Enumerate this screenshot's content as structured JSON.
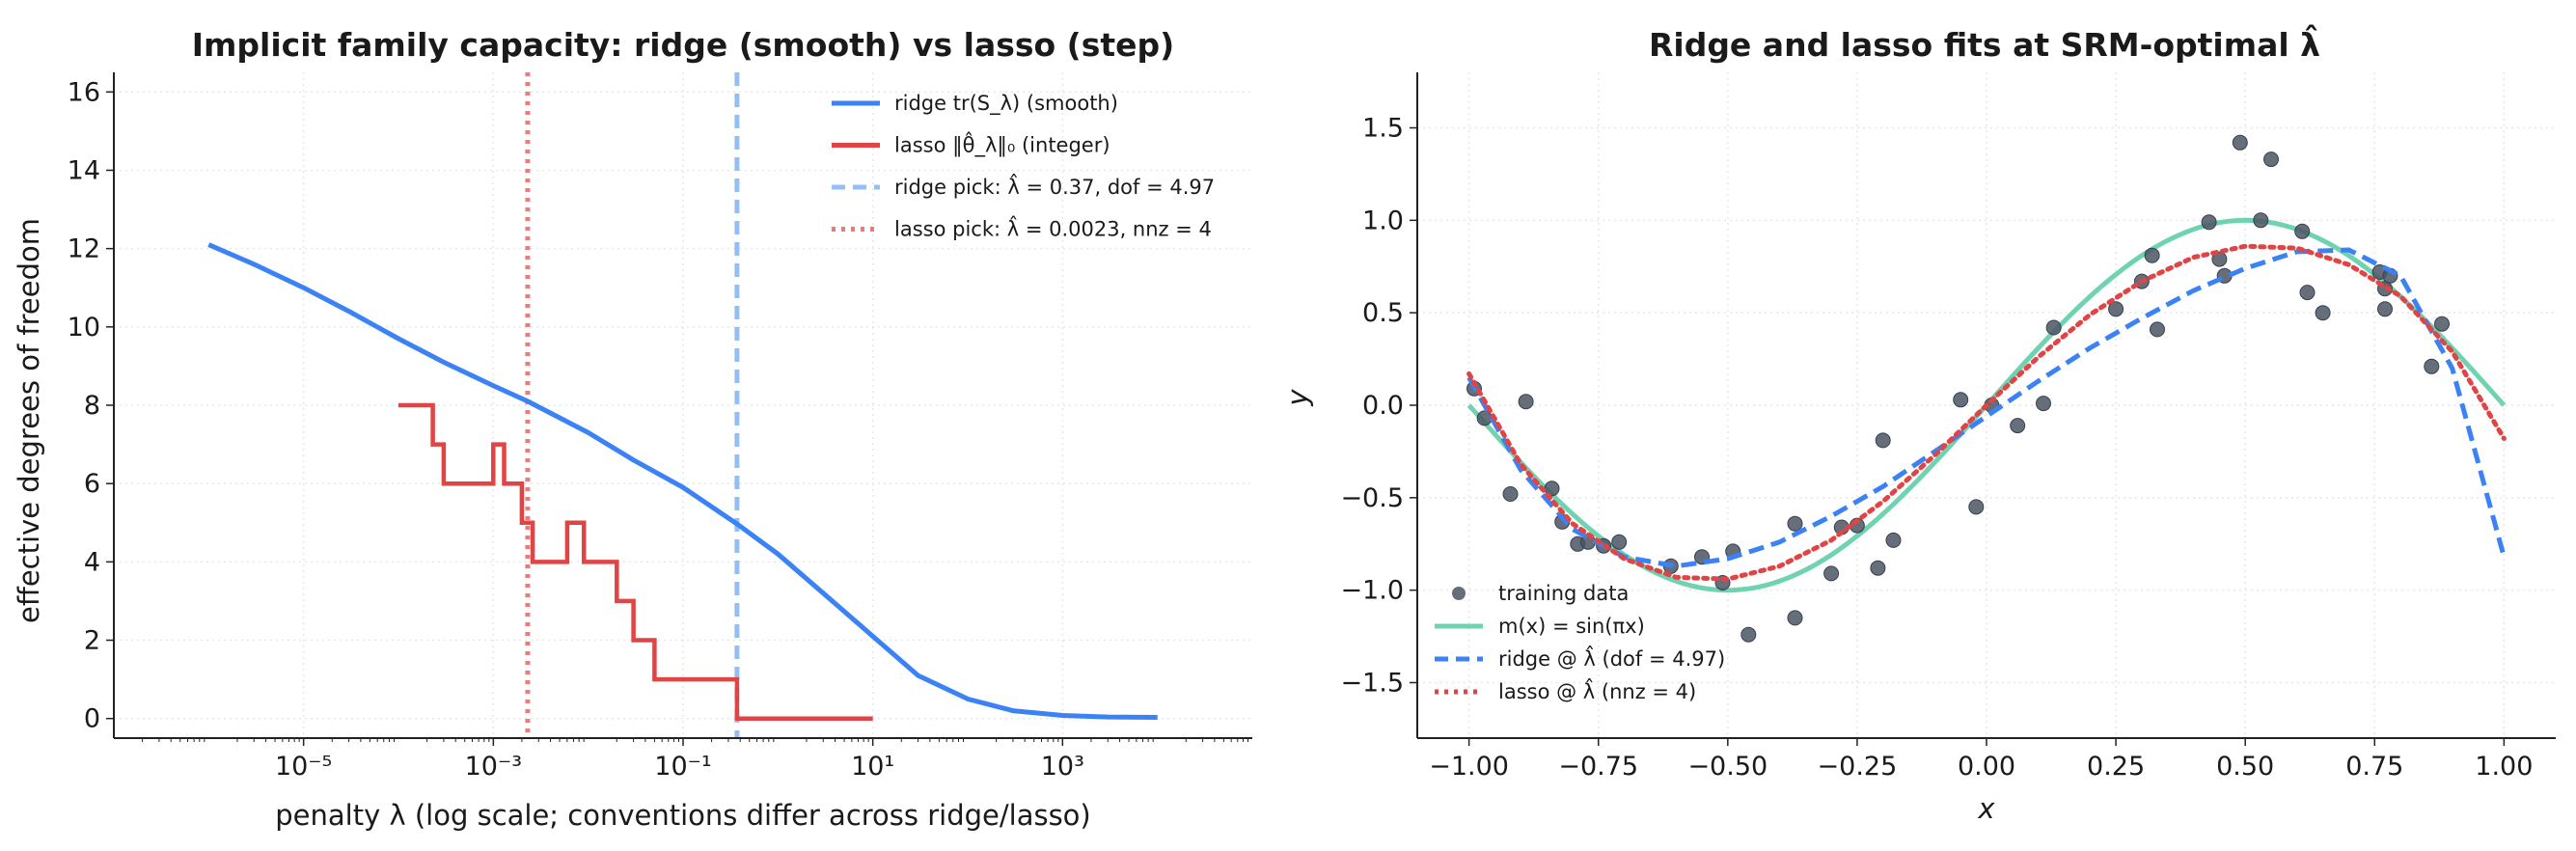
{
  "chart_data": [
    {
      "type": "line",
      "title": "Implicit family capacity: ridge (smooth) vs lasso (step)",
      "xlabel": "penalty λ (log scale; conventions differ across ridge/lasso)",
      "ylabel": "effective degrees of freedom",
      "xscale": "log",
      "xlim": [
        1e-07,
        100000.0
      ],
      "ylim": [
        -0.5,
        16.5
      ],
      "x_ticks": [
        {
          "value": 1e-05,
          "label": "10⁻⁵"
        },
        {
          "value": 0.001,
          "label": "10⁻³"
        },
        {
          "value": 0.1,
          "label": "10⁻¹"
        },
        {
          "value": 10,
          "label": "10¹"
        },
        {
          "value": 1000,
          "label": "10³"
        }
      ],
      "y_ticks": [
        0,
        2,
        4,
        6,
        8,
        10,
        12,
        14,
        16
      ],
      "grid": "on (dotted)",
      "legend_position": "top-right",
      "series": [
        {
          "key": "ridge",
          "name": "ridge  tr(S_λ)  (smooth)",
          "color": "#3b82f6",
          "style": "solid",
          "x": [
            1e-06,
            3e-06,
            1e-05,
            3e-05,
            0.0001,
            0.0003,
            0.001,
            0.0023,
            0.01,
            0.03,
            0.1,
            0.37,
            1,
            3,
            10,
            30,
            100,
            300,
            1000,
            3000,
            10000
          ],
          "y": [
            12.1,
            11.6,
            11.0,
            10.4,
            9.7,
            9.1,
            8.5,
            8.1,
            7.3,
            6.6,
            5.9,
            4.97,
            4.2,
            3.2,
            2.1,
            1.1,
            0.5,
            0.2,
            0.08,
            0.04,
            0.03
          ]
        },
        {
          "key": "lasso",
          "name": "lasso  ‖θ̂_λ‖₀  (integer)",
          "color": "#e04444",
          "style": "step",
          "steps": [
            {
              "x": 0.0001,
              "y": 8
            },
            {
              "x": 0.00023,
              "y": 7
            },
            {
              "x": 0.0003,
              "y": 6
            },
            {
              "x": 0.001,
              "y": 7
            },
            {
              "x": 0.0013,
              "y": 6
            },
            {
              "x": 0.002,
              "y": 5
            },
            {
              "x": 0.0026,
              "y": 4
            },
            {
              "x": 0.006,
              "y": 5
            },
            {
              "x": 0.009,
              "y": 4
            },
            {
              "x": 0.02,
              "y": 3
            },
            {
              "x": 0.03,
              "y": 2
            },
            {
              "x": 0.05,
              "y": 1
            },
            {
              "x": 0.37,
              "y": 0
            },
            {
              "x": 10,
              "y": 0
            }
          ]
        }
      ],
      "vlines": [
        {
          "key": "ridge_pick",
          "x": 0.37,
          "label": "ridge pick: λ̂ = 0.37,  dof = 4.97",
          "color": "#93bff7",
          "style": "dashed"
        },
        {
          "key": "lasso_pick",
          "x": 0.0023,
          "label": "lasso pick: λ̂ = 0.0023,  nnz = 4",
          "color": "#f07878",
          "style": "dotted"
        }
      ]
    },
    {
      "type": "scatter",
      "title": "Ridge and lasso fits at SRM-optimal λ̂",
      "xlabel": "x",
      "ylabel": "y",
      "xlim": [
        -1.1,
        1.1
      ],
      "ylim": [
        -1.8,
        1.8
      ],
      "x_ticks": [
        -1.0,
        -0.75,
        -0.5,
        -0.25,
        0.0,
        0.25,
        0.5,
        0.75,
        1.0
      ],
      "x_tick_labels": [
        "−1.00",
        "−0.75",
        "−0.50",
        "−0.25",
        "0.00",
        "0.25",
        "0.50",
        "0.75",
        "1.00"
      ],
      "y_ticks": [
        -1.5,
        -1.0,
        -0.5,
        0.0,
        0.5,
        1.0,
        1.5
      ],
      "y_tick_labels": [
        "−1.5",
        "−1.0",
        "−0.5",
        "0.0",
        "0.5",
        "1.0",
        "1.5"
      ],
      "grid": "on (dotted)",
      "legend_position": "lower-left",
      "series": [
        {
          "key": "training",
          "name": "training data",
          "color": "#4b5563",
          "kind": "points",
          "points": [
            [
              -0.99,
              0.09
            ],
            [
              -0.97,
              -0.07
            ],
            [
              -0.92,
              -0.48
            ],
            [
              -0.89,
              0.02
            ],
            [
              -0.84,
              -0.45
            ],
            [
              -0.82,
              -0.63
            ],
            [
              -0.79,
              -0.75
            ],
            [
              -0.77,
              -0.74
            ],
            [
              -0.74,
              -0.76
            ],
            [
              -0.71,
              -0.74
            ],
            [
              -0.61,
              -0.87
            ],
            [
              -0.55,
              -0.82
            ],
            [
              -0.51,
              -0.96
            ],
            [
              -0.49,
              -0.79
            ],
            [
              -0.46,
              -1.24
            ],
            [
              -0.37,
              -0.64
            ],
            [
              -0.37,
              -1.15
            ],
            [
              -0.3,
              -0.91
            ],
            [
              -0.28,
              -0.66
            ],
            [
              -0.25,
              -0.65
            ],
            [
              -0.21,
              -0.88
            ],
            [
              -0.2,
              -0.19
            ],
            [
              -0.18,
              -0.73
            ],
            [
              -0.05,
              0.03
            ],
            [
              -0.02,
              -0.55
            ],
            [
              0.01,
              0.0
            ],
            [
              0.06,
              -0.11
            ],
            [
              0.11,
              0.01
            ],
            [
              0.13,
              0.42
            ],
            [
              0.25,
              0.52
            ],
            [
              0.3,
              0.67
            ],
            [
              0.32,
              0.81
            ],
            [
              0.33,
              0.41
            ],
            [
              0.43,
              0.99
            ],
            [
              0.45,
              0.79
            ],
            [
              0.46,
              0.7
            ],
            [
              0.49,
              1.42
            ],
            [
              0.53,
              1.0
            ],
            [
              0.55,
              1.33
            ],
            [
              0.61,
              0.94
            ],
            [
              0.62,
              0.61
            ],
            [
              0.65,
              0.5
            ],
            [
              0.76,
              0.72
            ],
            [
              0.77,
              0.63
            ],
            [
              0.77,
              0.52
            ],
            [
              0.78,
              0.7
            ],
            [
              0.86,
              0.21
            ],
            [
              0.88,
              0.44
            ]
          ]
        },
        {
          "key": "truth",
          "name": "m(x) = sin(πx)",
          "color": "#6fd3b2",
          "style": "solid",
          "func": "sin(pi x)"
        },
        {
          "key": "ridge_fit",
          "name": "ridge @ λ̂  (dof = 4.97)",
          "color": "#3b82f6",
          "style": "dashed",
          "x": [
            -1.0,
            -0.9,
            -0.8,
            -0.7,
            -0.6,
            -0.5,
            -0.4,
            -0.3,
            -0.2,
            -0.1,
            0.0,
            0.1,
            0.2,
            0.3,
            0.4,
            0.5,
            0.6,
            0.7,
            0.8,
            0.9,
            1.0
          ],
          "y": [
            0.15,
            -0.35,
            -0.67,
            -0.82,
            -0.87,
            -0.83,
            -0.74,
            -0.6,
            -0.44,
            -0.25,
            -0.06,
            0.13,
            0.31,
            0.47,
            0.62,
            0.74,
            0.83,
            0.84,
            0.7,
            0.2,
            -0.82
          ]
        },
        {
          "key": "lasso_fit",
          "name": "lasso @ λ̂  (nnz = 4)",
          "color": "#e04444",
          "style": "dotted",
          "x": [
            -1.0,
            -0.9,
            -0.8,
            -0.7,
            -0.6,
            -0.5,
            -0.4,
            -0.3,
            -0.2,
            -0.1,
            0.0,
            0.1,
            0.2,
            0.3,
            0.4,
            0.5,
            0.6,
            0.7,
            0.8,
            0.9,
            1.0
          ],
          "y": [
            0.17,
            -0.32,
            -0.64,
            -0.83,
            -0.93,
            -0.94,
            -0.87,
            -0.73,
            -0.52,
            -0.27,
            0.0,
            0.26,
            0.49,
            0.67,
            0.8,
            0.86,
            0.85,
            0.76,
            0.59,
            0.29,
            -0.18
          ]
        }
      ]
    }
  ]
}
